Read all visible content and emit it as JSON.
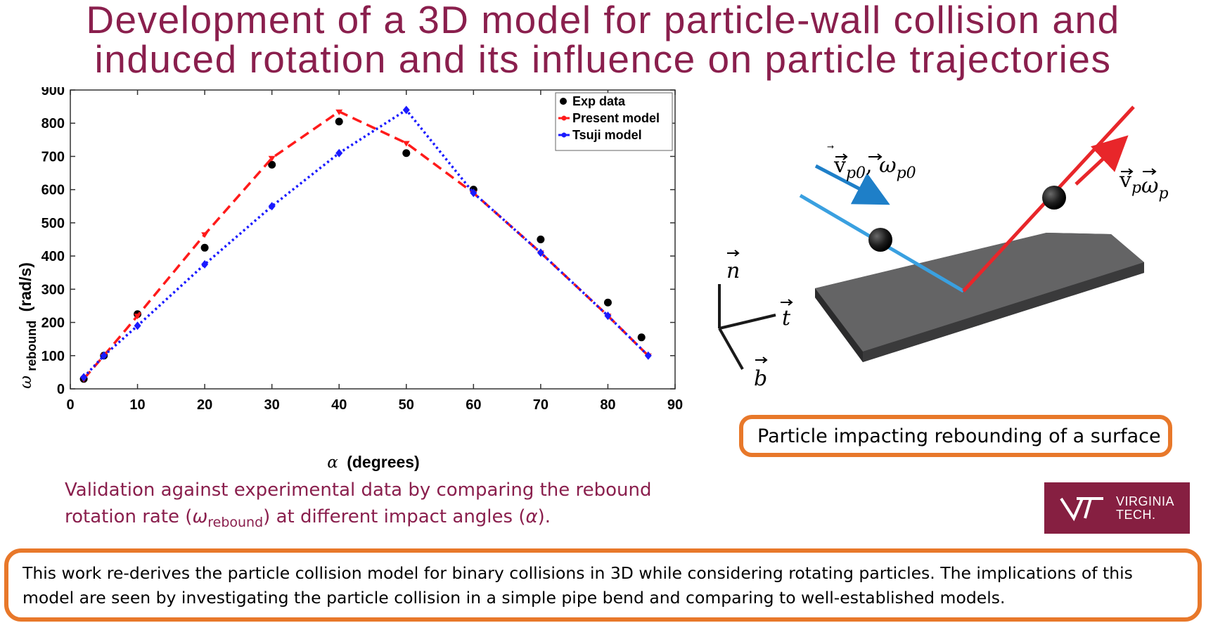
{
  "title": {
    "line1": "Development of a 3D model for particle-wall collision and",
    "line2": "induced rotation and its influence on particle trajectories"
  },
  "chart_data": {
    "type": "line",
    "xlim": [
      0,
      90
    ],
    "ylim": [
      0,
      900
    ],
    "xticks": [
      "0",
      "10",
      "20",
      "30",
      "40",
      "50",
      "60",
      "70",
      "80",
      "90"
    ],
    "yticks": [
      "0",
      "100",
      "200",
      "300",
      "400",
      "500",
      "600",
      "700",
      "800",
      "900"
    ],
    "xlabel_symbol": "α",
    "xlabel_text": "(degrees)",
    "ylabel_symbol": "ω",
    "ylabel_sub": "rebound",
    "ylabel_unit": "(rad/s)",
    "grid": false,
    "legend_position": "top-right",
    "series": [
      {
        "name": "Exp data",
        "style": "markers",
        "color": "#000000",
        "x": [
          2,
          5,
          10,
          20,
          30,
          40,
          50,
          60,
          70,
          80,
          85
        ],
        "y": [
          30,
          100,
          225,
          425,
          675,
          805,
          710,
          600,
          450,
          260,
          155
        ]
      },
      {
        "name": "Present model",
        "style": "dashed",
        "color": "#ff1a1a",
        "x": [
          2,
          5,
          10,
          20,
          30,
          40,
          50,
          60,
          70,
          80,
          86
        ],
        "y": [
          30,
          100,
          220,
          465,
          695,
          835,
          740,
          590,
          410,
          220,
          100
        ]
      },
      {
        "name": "Tsuji model",
        "style": "dotted",
        "color": "#1a1aff",
        "x": [
          2,
          5,
          10,
          20,
          30,
          40,
          50,
          60,
          70,
          80,
          86
        ],
        "y": [
          35,
          100,
          190,
          375,
          550,
          710,
          840,
          590,
          410,
          220,
          100
        ]
      }
    ]
  },
  "caption": {
    "part1": "Validation against experimental data by comparing the rebound",
    "part2a": "rotation rate (",
    "omega": "ω",
    "sub": "rebound",
    "part2b": ") at different impact angles (",
    "alpha": "α",
    "part2c": ")."
  },
  "diagram": {
    "label_in": "v⃗p0, ω⃗p0",
    "label_in_v": "v",
    "label_in_sub_v": "p0",
    "label_in_w": "ω",
    "label_in_sub_w": "p0",
    "label_out_v": "v",
    "label_out_sub_v": "p",
    "label_out_w": "ω",
    "label_out_sub_w": "p",
    "axis_n": "n",
    "axis_t": "t",
    "axis_b": "b",
    "incoming_color": "#1e7fc8",
    "outgoing_color": "#e8262a",
    "surface_color": "#5f5f60"
  },
  "caption_box": "Particle impacting rebounding of a surface",
  "logo": {
    "line1": "VIRGINIA",
    "line2": "TECH.",
    "brand_color": "#861f41"
  },
  "summary": "This work re-derives the particle collision model for binary collisions in 3D while considering rotating particles. The implications of this model are seen by investigating the particle collision in a simple pipe bend and comparing to well-established models."
}
